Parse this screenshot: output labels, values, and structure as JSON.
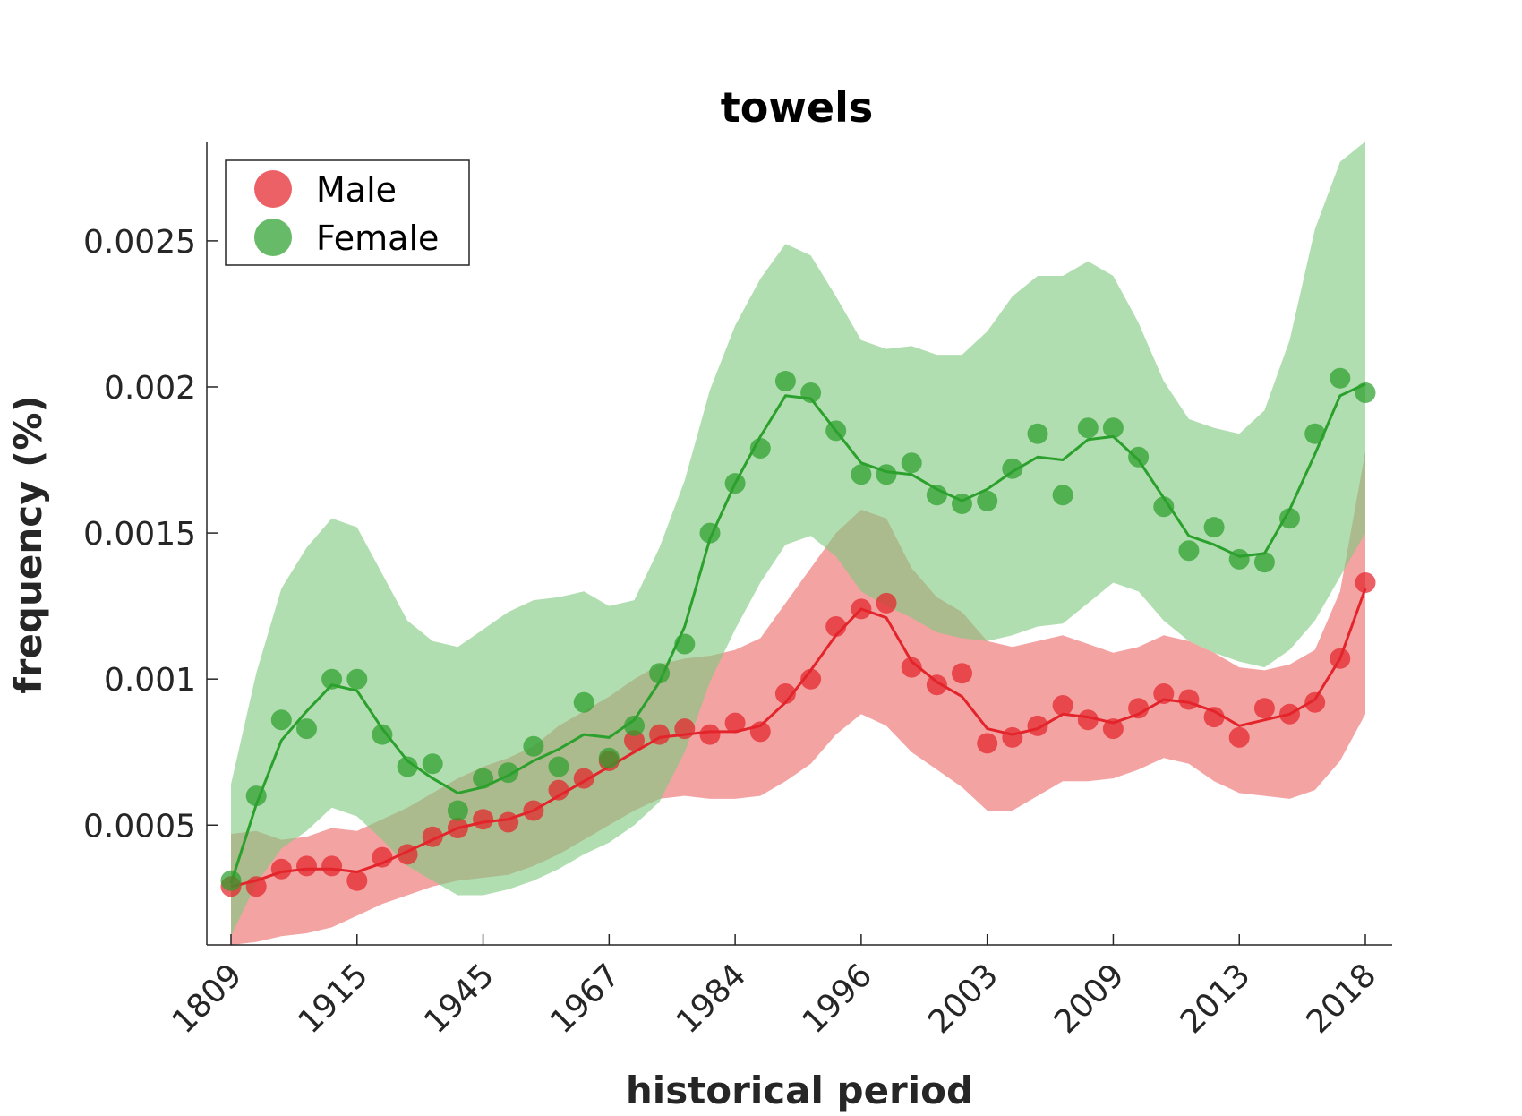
{
  "chart_data": {
    "type": "line",
    "title": "towels",
    "xlabel": "historical period",
    "ylabel": "frequency (%)",
    "x_tick_labels": [
      "1809",
      "1915",
      "1945",
      "1967",
      "1984",
      "1996",
      "2003",
      "2009",
      "2013",
      "2018"
    ],
    "y_ticks": [
      0.0005,
      0.001,
      0.0015,
      0.002,
      0.0025
    ],
    "y_tick_labels": [
      "0.0005",
      "0.001",
      "0.0015",
      "0.002",
      "0.0025"
    ],
    "ylim": [
      9e-05,
      0.00284
    ],
    "n_points": 46,
    "grid": false,
    "legend": {
      "position": "top-left"
    },
    "series": [
      {
        "name": "Male",
        "color": "#e3242b",
        "band_color": "#f08080",
        "points": [
          0.00029,
          0.00029,
          0.00035,
          0.00036,
          0.00036,
          0.00031,
          0.00039,
          0.0004,
          0.00046,
          0.00049,
          0.00052,
          0.00051,
          0.00055,
          0.00062,
          0.00066,
          0.00072,
          0.00079,
          0.00081,
          0.00083,
          0.00081,
          0.00085,
          0.00082,
          0.00095,
          0.001,
          0.00118,
          0.00124,
          0.00126,
          0.00104,
          0.00098,
          0.00102,
          0.00078,
          0.0008,
          0.00084,
          0.00091,
          0.00086,
          0.00083,
          0.0009,
          0.00095,
          0.00093,
          0.00087,
          0.0008,
          0.0009,
          0.00088,
          0.00092,
          0.00107,
          0.00133
        ],
        "smoothed": [
          0.00029,
          0.00031,
          0.00034,
          0.00035,
          0.00035,
          0.00034,
          0.00037,
          0.00041,
          0.00045,
          0.00049,
          0.00051,
          0.00052,
          0.00055,
          0.0006,
          0.00065,
          0.0007,
          0.00075,
          0.0008,
          0.00081,
          0.00082,
          0.00082,
          0.00084,
          0.00092,
          0.00103,
          0.00115,
          0.00124,
          0.00121,
          0.00106,
          0.00099,
          0.00094,
          0.00083,
          0.00081,
          0.00083,
          0.00088,
          0.00087,
          0.00085,
          0.00088,
          0.00093,
          0.00092,
          0.00089,
          0.00084,
          0.00086,
          0.00088,
          0.00093,
          0.00107,
          0.00131
        ],
        "lower": [
          9e-05,
          0.0001,
          0.00012,
          0.00013,
          0.00015,
          0.00019,
          0.00023,
          0.00026,
          0.00029,
          0.00031,
          0.00032,
          0.00033,
          0.00036,
          0.0004,
          0.00045,
          0.0005,
          0.00055,
          0.00059,
          0.0006,
          0.00059,
          0.00059,
          0.0006,
          0.00065,
          0.00071,
          0.00081,
          0.00088,
          0.00084,
          0.00075,
          0.00069,
          0.00063,
          0.00055,
          0.00055,
          0.0006,
          0.00065,
          0.00065,
          0.00066,
          0.00069,
          0.00073,
          0.00071,
          0.00065,
          0.00061,
          0.0006,
          0.00059,
          0.00062,
          0.00072,
          0.00088
        ],
        "upper": [
          0.00047,
          0.00048,
          0.00045,
          0.00046,
          0.00049,
          0.00048,
          0.00052,
          0.00056,
          0.00061,
          0.00066,
          0.0007,
          0.00073,
          0.00077,
          0.00084,
          0.00089,
          0.00094,
          0.001,
          0.00105,
          0.00107,
          0.00108,
          0.0011,
          0.00114,
          0.00126,
          0.00138,
          0.0015,
          0.00158,
          0.00155,
          0.00138,
          0.00128,
          0.00123,
          0.00113,
          0.00111,
          0.00113,
          0.00115,
          0.00112,
          0.00109,
          0.00111,
          0.00115,
          0.00113,
          0.00109,
          0.00104,
          0.00103,
          0.00105,
          0.0011,
          0.0013,
          0.00178
        ]
      },
      {
        "name": "Female",
        "color": "#2ca02c",
        "band_color": "#7fc97f",
        "points": [
          0.00031,
          0.0006,
          0.00086,
          0.00083,
          0.001,
          0.001,
          0.00081,
          0.0007,
          0.00071,
          0.00055,
          0.00066,
          0.00068,
          0.00077,
          0.0007,
          0.00092,
          0.00073,
          0.00084,
          0.00102,
          0.00112,
          0.0015,
          0.00167,
          0.00179,
          0.00202,
          0.00198,
          0.00185,
          0.0017,
          0.0017,
          0.00174,
          0.00163,
          0.0016,
          0.00161,
          0.00172,
          0.00184,
          0.00163,
          0.00186,
          0.00186,
          0.00176,
          0.00159,
          0.00144,
          0.00152,
          0.00141,
          0.0014,
          0.00155,
          0.00184,
          0.00203,
          0.00198
        ],
        "smoothed": [
          0.0003,
          0.00057,
          0.00079,
          0.00089,
          0.00098,
          0.00096,
          0.00083,
          0.00072,
          0.00066,
          0.00061,
          0.00063,
          0.00067,
          0.00072,
          0.00076,
          0.00081,
          0.0008,
          0.00086,
          0.00099,
          0.00118,
          0.00148,
          0.00167,
          0.00183,
          0.00197,
          0.00196,
          0.00185,
          0.00174,
          0.00171,
          0.0017,
          0.00165,
          0.00161,
          0.00165,
          0.00171,
          0.00176,
          0.00175,
          0.00182,
          0.00183,
          0.00175,
          0.00162,
          0.00149,
          0.00146,
          0.00142,
          0.00143,
          0.00158,
          0.00177,
          0.00197,
          0.00201
        ],
        "lower": [
          0.00012,
          0.0003,
          0.00042,
          0.00048,
          0.00056,
          0.00053,
          0.00045,
          0.00036,
          0.00031,
          0.00026,
          0.00026,
          0.00028,
          0.00031,
          0.00035,
          0.0004,
          0.00044,
          0.0005,
          0.00058,
          0.00075,
          0.00099,
          0.00117,
          0.00133,
          0.00146,
          0.00149,
          0.00142,
          0.0013,
          0.00125,
          0.00121,
          0.00116,
          0.00114,
          0.00113,
          0.00115,
          0.00118,
          0.00119,
          0.00126,
          0.00133,
          0.0013,
          0.0012,
          0.00113,
          0.00109,
          0.00106,
          0.00104,
          0.0011,
          0.0012,
          0.00135,
          0.0015
        ],
        "upper": [
          0.00064,
          0.00102,
          0.00131,
          0.00145,
          0.00155,
          0.00152,
          0.00136,
          0.0012,
          0.00113,
          0.00111,
          0.00117,
          0.00123,
          0.00127,
          0.00128,
          0.0013,
          0.00125,
          0.00127,
          0.00145,
          0.00168,
          0.00199,
          0.00221,
          0.00237,
          0.00249,
          0.00245,
          0.00231,
          0.00216,
          0.00213,
          0.00214,
          0.00211,
          0.00211,
          0.00219,
          0.00231,
          0.00238,
          0.00238,
          0.00243,
          0.00238,
          0.00222,
          0.00202,
          0.00189,
          0.00186,
          0.00184,
          0.00192,
          0.00216,
          0.00254,
          0.00277,
          0.00284
        ]
      }
    ]
  }
}
